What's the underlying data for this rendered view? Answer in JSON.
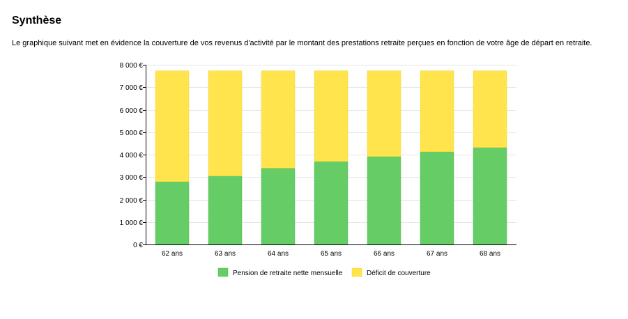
{
  "section": {
    "title": "Synthèse",
    "intro": "Le graphique suivant met en évidence la couverture de vos revenus d'activité par le montant des prestations retraite perçues en fonction de votre âge de départ en retraite."
  },
  "colors": {
    "pension": "#66cc66",
    "pension_stroke": "#55bb55",
    "deficit": "#ffe44d",
    "deficit_stroke": "#eed53c",
    "grid": "#e6e6e6",
    "axis": "#000000"
  },
  "chart_data": {
    "type": "bar",
    "stacked": true,
    "categories": [
      "62 ans",
      "63 ans",
      "64 ans",
      "65 ans",
      "66 ans",
      "67 ans",
      "68 ans"
    ],
    "series": [
      {
        "name": "Pension de retraite nette mensuelle",
        "values": [
          2800,
          3050,
          3400,
          3700,
          3920,
          4130,
          4320
        ]
      },
      {
        "name": "Déficit de couverture",
        "values": [
          4930,
          4680,
          4330,
          4030,
          3810,
          3600,
          3410
        ]
      }
    ],
    "ylim": [
      0,
      8000
    ],
    "yticks": [
      0,
      1000,
      2000,
      3000,
      4000,
      5000,
      6000,
      7000,
      8000
    ],
    "ytick_labels": [
      "0 €",
      "1 000 €",
      "2 000 €",
      "3 000 €",
      "4 000 €",
      "5 000 €",
      "6 000 €",
      "7 000 €",
      "8 000 €"
    ],
    "grid": true,
    "legend_position": "bottom"
  }
}
